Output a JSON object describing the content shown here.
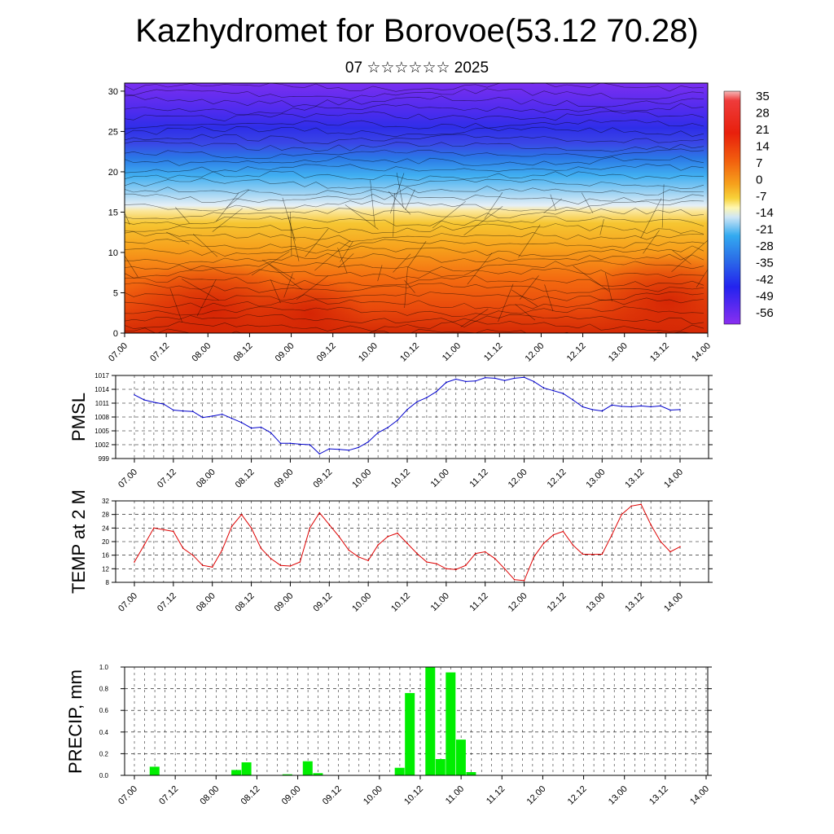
{
  "title": "Kazhydromet for Borovoe(53.12 70.28)",
  "subtitle": "07 ☆☆☆☆☆☆ 2025",
  "time_labels": [
    "07.00",
    "07.12",
    "08.00",
    "08.12",
    "09.00",
    "09.12",
    "10.00",
    "10.12",
    "11.00",
    "11.12",
    "12.00",
    "12.12",
    "13.00",
    "13.12",
    "14.00"
  ],
  "colors": {
    "pmsl": "#0000cc",
    "temp": "#dd0000",
    "precip": "#00ee00"
  },
  "chart_data": [
    {
      "type": "heatmap",
      "title": "Kazhydromet for Borovoe(53.12 70.28)",
      "subtitle": "07 ☆☆☆☆☆☆ 2025",
      "xlabel": "",
      "ylabel": "",
      "x_tick_labels": [
        "07.00",
        "07.12",
        "08.00",
        "08.12",
        "09.00",
        "09.12",
        "10.00",
        "10.12",
        "11.00",
        "11.12",
        "12.00",
        "12.12",
        "13.00",
        "13.12",
        "14.00"
      ],
      "y_ticks": [
        0,
        5,
        10,
        15,
        20,
        25,
        30
      ],
      "ylim": [
        0,
        31
      ],
      "colorbar_labels": [
        "35",
        "28",
        "21",
        "14",
        "7",
        "0",
        "-7",
        "-14",
        "-21",
        "-28",
        "-35",
        "-42",
        "-49",
        "-56"
      ],
      "overlay": "wind streamlines"
    },
    {
      "type": "line",
      "ylabel": "PMSL",
      "ylim": [
        999,
        1017
      ],
      "y_ticks": [
        999,
        1002,
        1005,
        1008,
        1011,
        1014,
        1017
      ],
      "x_tick_labels": [
        "07.00",
        "07.12",
        "08.00",
        "08.12",
        "09.00",
        "09.12",
        "10.00",
        "10.12",
        "11.00",
        "11.12",
        "12.00",
        "12.12",
        "13.00",
        "13.12",
        "14.00"
      ],
      "series": [
        {
          "values": [
            1012.8,
            1011.7,
            1011.2,
            1010.8,
            1009.5,
            1009.3,
            1009.2,
            1007.9,
            1008.2,
            1008.6,
            1007.7,
            1006.8,
            1005.6,
            1005.8,
            1004.6,
            1002.3,
            1002.3,
            1002.1,
            1002.0,
            1000.0,
            1001.1,
            1001.0,
            1000.8,
            1001.4,
            1002.6,
            1004.6,
            1005.7,
            1007.3,
            1009.6,
            1011.3,
            1012.2,
            1013.5,
            1015.5,
            1016.2,
            1015.7,
            1015.8,
            1016.5,
            1016.4,
            1015.9,
            1016.4,
            1016.6,
            1015.7,
            1014.3,
            1013.7,
            1013.1,
            1011.7,
            1010.2,
            1009.6,
            1009.3,
            1010.6,
            1010.3,
            1010.2,
            1010.4,
            1010.2,
            1010.4,
            1009.5,
            1009.6
          ]
        }
      ],
      "x_start": 7.0,
      "x_step_hours": 3
    },
    {
      "type": "line",
      "ylabel": "TEMP at 2 M",
      "ylim": [
        8,
        32
      ],
      "y_ticks": [
        8,
        12,
        16,
        20,
        24,
        28,
        32
      ],
      "x_tick_labels": [
        "07.00",
        "07.12",
        "08.00",
        "08.12",
        "09.00",
        "09.12",
        "10.00",
        "10.12",
        "11.00",
        "11.12",
        "12.00",
        "12.12",
        "13.00",
        "13.12",
        "14.00"
      ],
      "series": [
        {
          "values": [
            14,
            19,
            24,
            23.5,
            23,
            18,
            16,
            13,
            12.5,
            17.5,
            24.5,
            28,
            24,
            18,
            15,
            13,
            12.8,
            14,
            24,
            28.5,
            25,
            21.5,
            17.5,
            15.5,
            14.4,
            19,
            21.5,
            22.5,
            19.5,
            16.5,
            14,
            13.5,
            12,
            11.8,
            13,
            16.5,
            17,
            15,
            12,
            8.8,
            8.5,
            15.5,
            19.5,
            22,
            23,
            19,
            16.3,
            16.2,
            16.3,
            22,
            28,
            30.5,
            31,
            25,
            20,
            17,
            18.5
          ]
        }
      ],
      "x_start": 7.0,
      "x_step_hours": 3
    },
    {
      "type": "bar",
      "ylabel": "PRECIP, mm",
      "ylim": [
        0,
        1.0
      ],
      "y_ticks": [
        "0.0",
        "0.2",
        "0.4",
        "0.6",
        "0.8",
        "1.0"
      ],
      "x_tick_labels": [
        "07.00",
        "07.12",
        "08.00",
        "08.12",
        "09.00",
        "09.12",
        "10.00",
        "10.12",
        "11.00",
        "11.12",
        "12.00",
        "12.12",
        "13.00",
        "13.12",
        "14.00"
      ],
      "values": [
        0,
        0.08,
        0,
        0,
        0,
        0,
        0,
        0,
        0,
        0.05,
        0.12,
        0,
        0,
        0,
        0.01,
        0,
        0.13,
        0.02,
        0,
        0,
        0,
        0,
        0,
        0,
        0,
        0.07,
        0.76,
        0,
        1.0,
        0.15,
        0.95,
        0.33,
        0.03,
        0,
        0,
        0,
        0,
        0,
        0,
        0,
        0,
        0,
        0,
        0,
        0,
        0,
        0,
        0,
        0,
        0,
        0,
        0,
        0,
        0,
        0,
        0
      ],
      "x_start": 7.0,
      "x_step_hours": 3
    }
  ]
}
